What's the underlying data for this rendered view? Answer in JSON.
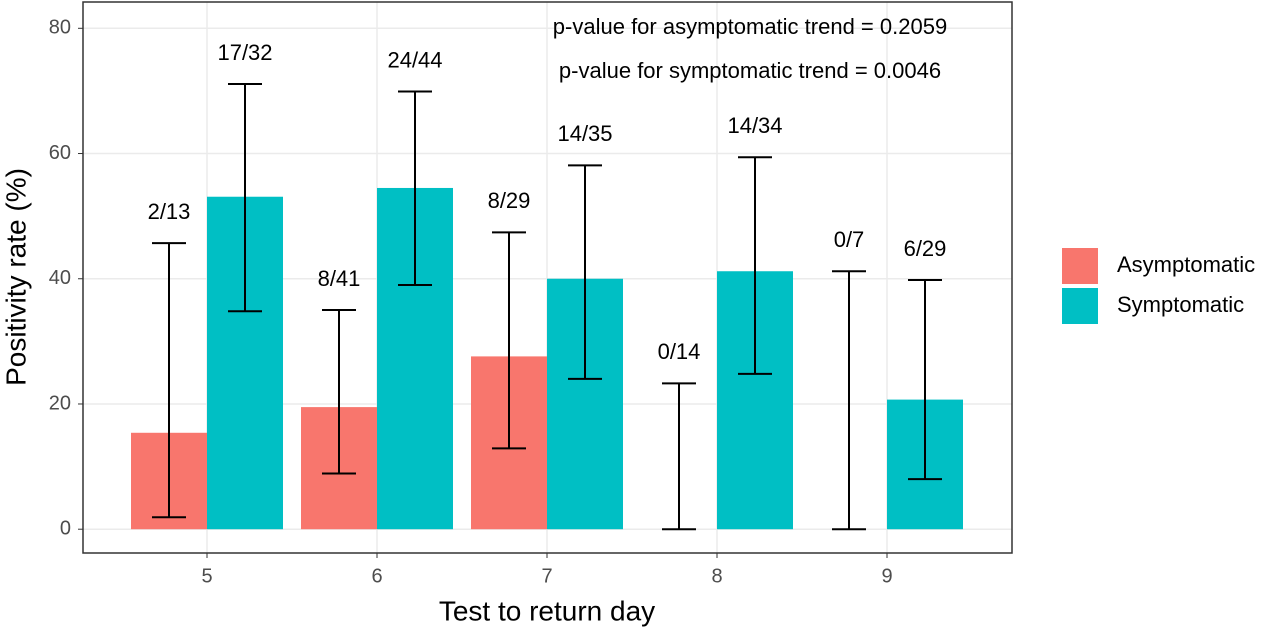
{
  "chart_data": {
    "type": "bar",
    "x_label": "Test to return day",
    "y_label": "Positivity rate (%)",
    "annotations": [
      "p-value for asymptomatic trend = 0.2059",
      "p-value for symptomatic trend = 0.0046"
    ],
    "categories": [
      "5",
      "6",
      "7",
      "8",
      "9"
    ],
    "series": [
      {
        "name": "Asymptomatic",
        "color": "#F8766D",
        "values": [
          15.4,
          19.5,
          27.6,
          0,
          0
        ],
        "value_labels": [
          "2/13",
          "8/41",
          "8/29",
          "0/14",
          "0/7"
        ],
        "ci_lower": [
          1.9,
          8.9,
          12.9,
          0,
          0
        ],
        "ci_upper": [
          45.7,
          35.0,
          47.4,
          23.3,
          41.2
        ]
      },
      {
        "name": "Symptomatic",
        "color": "#00BFC4",
        "values": [
          53.1,
          54.5,
          40.0,
          41.2,
          20.7
        ],
        "value_labels": [
          "17/32",
          "24/44",
          "14/35",
          "14/34",
          "6/29"
        ],
        "ci_lower": [
          34.8,
          39.0,
          24.0,
          24.8,
          8.0
        ],
        "ci_upper": [
          71.1,
          69.9,
          58.1,
          59.4,
          39.8
        ]
      }
    ],
    "ylim": [
      -3.8,
      84.2
    ],
    "yticks": [
      0,
      20,
      40,
      60,
      80
    ],
    "grid": true,
    "legend": "right"
  }
}
